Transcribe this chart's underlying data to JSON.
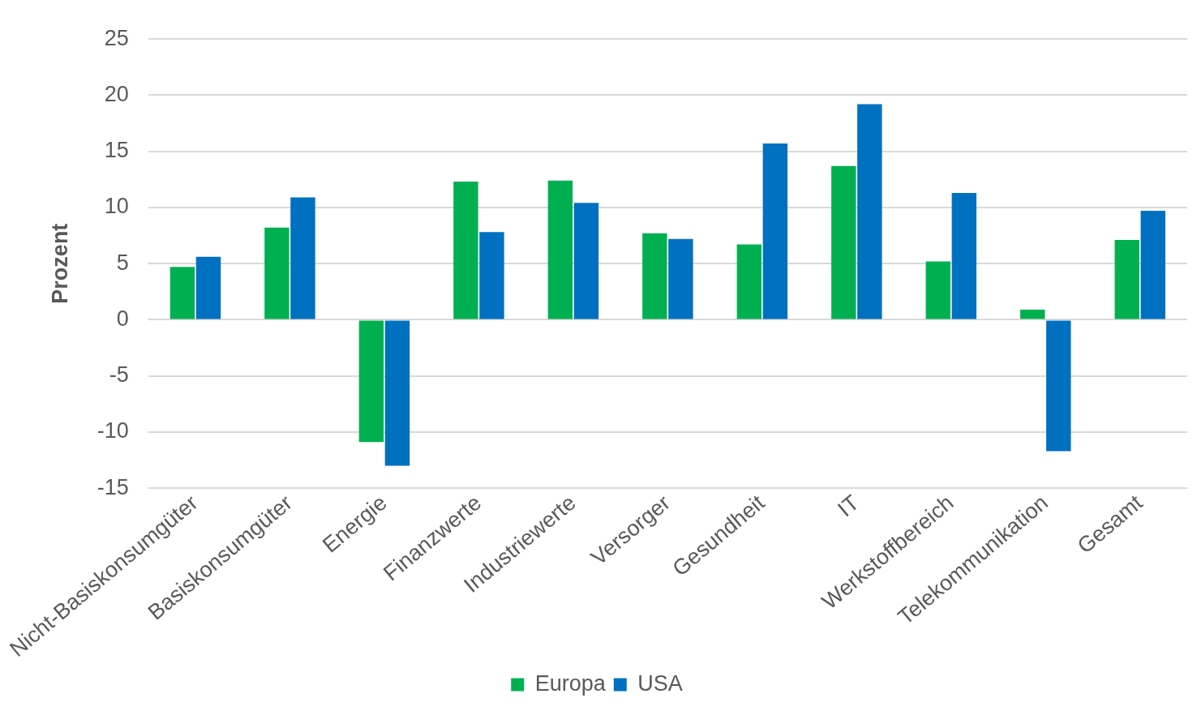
{
  "chart_data": {
    "type": "bar",
    "ylabel": "Prozent",
    "categories": [
      "Nicht-Basiskonsumgüter",
      "Basiskonsumgüter",
      "Energie",
      "Finanzwerte",
      "Industriewerte",
      "Versorger",
      "Gesundheit",
      "IT",
      "Werkstoffbereich",
      "Telekommunikation",
      "Gesamt"
    ],
    "series": [
      {
        "name": "Europa",
        "color": "#00b050",
        "values": [
          4.7,
          8.2,
          -10.9,
          12.3,
          12.4,
          7.7,
          6.7,
          13.7,
          5.2,
          0.9,
          7.1
        ]
      },
      {
        "name": "USA",
        "color": "#0070c0",
        "values": [
          5.6,
          10.9,
          -13.0,
          7.8,
          10.4,
          7.2,
          15.7,
          19.2,
          11.3,
          -11.7,
          9.7
        ]
      }
    ],
    "ylim": [
      -15,
      25
    ],
    "yticks": [
      -15,
      -10,
      -5,
      0,
      5,
      10,
      15,
      20,
      25
    ],
    "grid": "y",
    "legend": "bottom"
  }
}
